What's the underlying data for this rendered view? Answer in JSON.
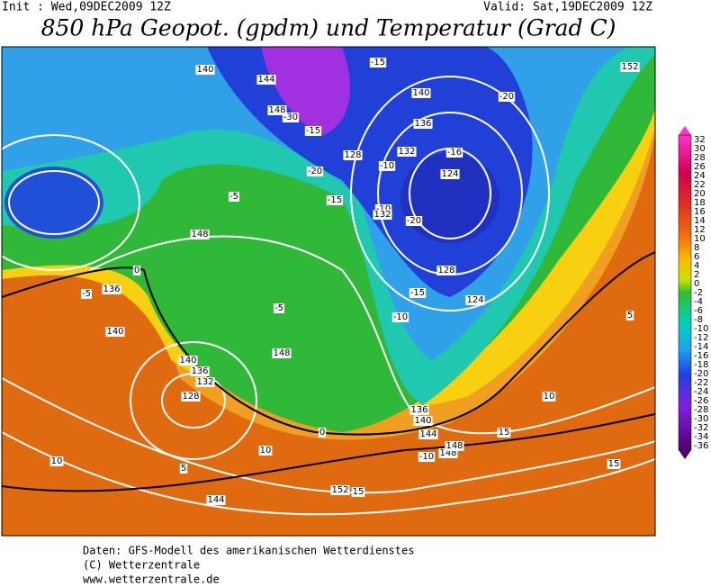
{
  "header": {
    "init": "Init : Wed,09DEC2009 12Z",
    "valid": "Valid: Sat,19DEC2009 12Z",
    "title": "850 hPa Geopot. (gpdm) und Temperatur (Grad C)"
  },
  "legend": {
    "labels": [
      "32",
      "30",
      "28",
      "26",
      "24",
      "22",
      "20",
      "18",
      "16",
      "14",
      "12",
      "10",
      "8",
      "6",
      "4",
      "2",
      "0",
      "-2",
      "-4",
      "-6",
      "-8",
      "-10",
      "-12",
      "-14",
      "-16",
      "-18",
      "-20",
      "-22",
      "-24",
      "-26",
      "-28",
      "-30",
      "-32",
      "-34",
      "-36"
    ]
  },
  "map": {
    "labels": [
      "140",
      "144",
      "148",
      "-30",
      "-15",
      "-15",
      "140",
      "136",
      "128",
      "-20",
      "124",
      "-20",
      "-20",
      "-10",
      "-15",
      "132",
      "-10",
      "-16",
      "132",
      "148",
      "-5",
      "136",
      "0",
      "140",
      "-5",
      "148",
      "140",
      "136",
      "132",
      "128",
      "10",
      "5",
      "0",
      "10",
      "144",
      "152",
      "15",
      "148",
      "-10",
      "136",
      "140",
      "144",
      "148",
      "15",
      "15",
      "124",
      "128",
      "-15",
      "-10",
      "-5",
      "152",
      "10",
      "5"
    ]
  },
  "footer": {
    "lines": [
      "Daten: GFS-Modell des amerikanischen Wetterdienstes",
      "(C) Wetterzentrale",
      "www.wetterzentrale.de"
    ]
  }
}
